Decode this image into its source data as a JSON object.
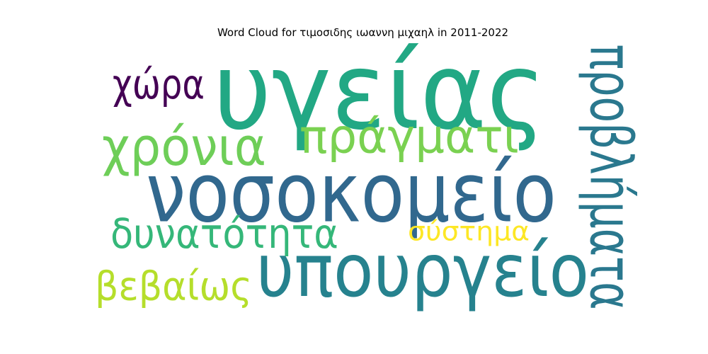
{
  "title": "Word Cloud for τιμοσιδης ιωαννη μιχαηλ in 2011-2022",
  "chart_data": {
    "type": "wordcloud",
    "title": "Word Cloud for τιμοσιδης ιωαννη μιχαηλ in 2011-2022",
    "words": [
      {
        "text": "υγείας",
        "rank": 1,
        "color": "#22a884"
      },
      {
        "text": "νοσοκομείο",
        "rank": 2,
        "color": "#31688e"
      },
      {
        "text": "υπουργείο",
        "rank": 3,
        "color": "#26828e"
      },
      {
        "text": "προβλήματα",
        "rank": 4,
        "color": "#2a788e"
      },
      {
        "text": "χρόνια",
        "rank": 5,
        "color": "#6ece58"
      },
      {
        "text": "πράγματι",
        "rank": 6,
        "color": "#7ad151"
      },
      {
        "text": "δυνατότητα",
        "rank": 7,
        "color": "#35b779"
      },
      {
        "text": "χώρα",
        "rank": 8,
        "color": "#440154"
      },
      {
        "text": "βεβαίως",
        "rank": 9,
        "color": "#b5de2b"
      },
      {
        "text": "σύστημα",
        "rank": 10,
        "color": "#fde725"
      }
    ]
  }
}
